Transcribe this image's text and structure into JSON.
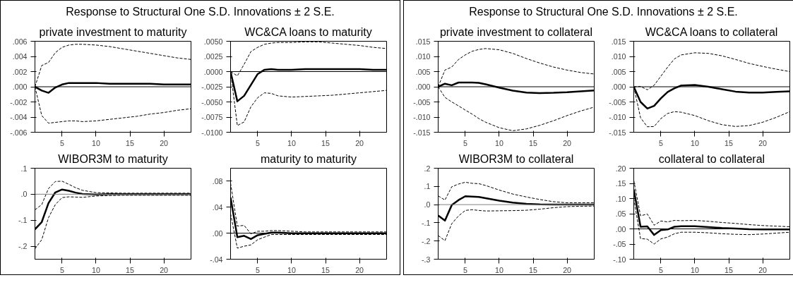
{
  "chart_data": [
    {
      "type": "line",
      "title": "private investment to maturity",
      "annotations": [
        "Response to Structural One S.D. Innovations ± 2 S.E."
      ],
      "x": [
        1,
        2,
        3,
        4,
        5,
        6,
        7,
        8,
        10,
        12,
        14,
        16,
        18,
        20,
        22,
        24
      ],
      "xlim": [
        1,
        24
      ],
      "xticks": [
        5,
        10,
        15,
        20
      ],
      "ylim": [
        -0.006,
        0.006
      ],
      "yticks": [
        {
          "value": -0.006,
          "label": "-.006"
        },
        {
          "value": -0.004,
          "label": "-.004"
        },
        {
          "value": -0.002,
          "label": "-.002"
        },
        {
          "value": 0,
          "label": ".000"
        },
        {
          "value": 0.002,
          "label": ".002"
        },
        {
          "value": 0.004,
          "label": ".004"
        },
        {
          "value": 0.006,
          "label": ".006"
        }
      ],
      "grid": false,
      "ref_lines": [
        {
          "axis": "y",
          "value": 0,
          "color": "#000000"
        }
      ],
      "series": [
        {
          "color": "#000000",
          "line_style": "solid",
          "values": [
            0,
            -0.0005,
            -0.0008,
            -0.0001,
            0.0003,
            0.0005,
            0.0005,
            0.0005,
            0.0005,
            0.0004,
            0.0004,
            0.0004,
            0.0004,
            0.0003,
            0.0003,
            0.0003
          ]
        },
        {
          "color": "#000000",
          "line_style": "dashed",
          "values": [
            0,
            0.0028,
            0.0032,
            0.0045,
            0.0052,
            0.0055,
            0.0056,
            0.0056,
            0.0055,
            0.0053,
            0.005,
            0.0047,
            0.0044,
            0.0041,
            0.0038,
            0.0036
          ]
        },
        {
          "color": "#000000",
          "line_style": "dashed",
          "values": [
            0,
            -0.0038,
            -0.0048,
            -0.0047,
            -0.0046,
            -0.0045,
            -0.0045,
            -0.0046,
            -0.0045,
            -0.0043,
            -0.0041,
            -0.0039,
            -0.0036,
            -0.0034,
            -0.0031,
            -0.0029
          ]
        }
      ]
    },
    {
      "type": "line",
      "title": "WC&CA loans to maturity",
      "x": [
        1,
        2,
        3,
        4,
        5,
        6,
        7,
        8,
        10,
        12,
        14,
        16,
        18,
        20,
        22,
        24
      ],
      "xlim": [
        1,
        24
      ],
      "xticks": [
        5,
        10,
        15,
        20
      ],
      "ylim": [
        -0.01,
        0.005
      ],
      "yticks": [
        {
          "value": -0.01,
          "label": "-.0100"
        },
        {
          "value": -0.0075,
          "label": "-.0075"
        },
        {
          "value": -0.005,
          "label": "-.0050"
        },
        {
          "value": -0.0025,
          "label": "-.0025"
        },
        {
          "value": 0,
          "label": ".0000"
        },
        {
          "value": 0.0025,
          "label": ".0025"
        },
        {
          "value": 0.005,
          "label": ".0050"
        }
      ],
      "grid": false,
      "ref_lines": [
        {
          "axis": "y",
          "value": 0,
          "color": "#000000"
        }
      ],
      "series": [
        {
          "color": "#000000",
          "line_style": "solid",
          "values": [
            0,
            -0.0049,
            -0.004,
            -0.0022,
            -0.0004,
            0.0003,
            0.0004,
            0.0003,
            0.0003,
            0.0004,
            0.0004,
            0.0004,
            0.0004,
            0.0004,
            0.0003,
            0.0003
          ]
        },
        {
          "color": "#000000",
          "line_style": "dashed",
          "values": [
            0,
            -0.0007,
            0.0012,
            0.0033,
            0.004,
            0.0045,
            0.0047,
            0.0048,
            0.0048,
            0.0049,
            0.0049,
            0.0047,
            0.0045,
            0.0043,
            0.004,
            0.0038
          ]
        },
        {
          "color": "#000000",
          "line_style": "dashed",
          "values": [
            0,
            -0.0089,
            -0.0083,
            -0.0058,
            -0.0043,
            -0.0035,
            -0.0036,
            -0.004,
            -0.0042,
            -0.0041,
            -0.004,
            -0.0039,
            -0.0037,
            -0.0035,
            -0.0033,
            -0.0031
          ]
        }
      ]
    },
    {
      "type": "line",
      "title": "private investment to collateral",
      "annotations": [
        "Response to Structural One S.D. Innovations ± 2 S.E."
      ],
      "x": [
        1,
        2,
        3,
        4,
        5,
        6,
        7,
        8,
        10,
        12,
        14,
        16,
        18,
        20,
        22,
        24
      ],
      "xlim": [
        1,
        24
      ],
      "xticks": [
        5,
        10,
        15,
        20
      ],
      "ylim": [
        -0.015,
        0.015
      ],
      "yticks": [
        {
          "value": -0.015,
          "label": "-.015"
        },
        {
          "value": -0.01,
          "label": "-.010"
        },
        {
          "value": -0.005,
          "label": "-.005"
        },
        {
          "value": 0,
          "label": ".000"
        },
        {
          "value": 0.005,
          "label": ".005"
        },
        {
          "value": 0.01,
          "label": ".010"
        },
        {
          "value": 0.015,
          "label": ".015"
        }
      ],
      "grid": false,
      "ref_lines": [
        {
          "axis": "y",
          "value": 0,
          "color": "#000000"
        }
      ],
      "series": [
        {
          "color": "#000000",
          "line_style": "solid",
          "values": [
            0,
            0.001,
            0.0005,
            0.0014,
            0.0014,
            0.0014,
            0.0013,
            0.0008,
            -0.0003,
            -0.0013,
            -0.0019,
            -0.0021,
            -0.002,
            -0.0018,
            -0.0015,
            -0.0012
          ]
        },
        {
          "color": "#000000",
          "line_style": "dashed",
          "values": [
            0,
            0.0055,
            0.0065,
            0.009,
            0.0105,
            0.0117,
            0.0123,
            0.0126,
            0.0122,
            0.011,
            0.0093,
            0.0078,
            0.0065,
            0.0055,
            0.0047,
            0.0042
          ]
        },
        {
          "color": "#000000",
          "line_style": "dashed",
          "values": [
            0,
            -0.0035,
            -0.005,
            -0.0063,
            -0.0077,
            -0.009,
            -0.0105,
            -0.0117,
            -0.0135,
            -0.0145,
            -0.0139,
            -0.0127,
            -0.0112,
            -0.0095,
            -0.008,
            -0.0067
          ]
        }
      ]
    },
    {
      "type": "line",
      "title": "WC&CA loans to collateral",
      "x": [
        1,
        2,
        3,
        4,
        5,
        6,
        7,
        8,
        10,
        12,
        14,
        16,
        18,
        20,
        22,
        24
      ],
      "xlim": [
        1,
        24
      ],
      "xticks": [
        5,
        10,
        15,
        20
      ],
      "ylim": [
        -0.015,
        0.015
      ],
      "yticks": [
        {
          "value": -0.015,
          "label": "-.015"
        },
        {
          "value": -0.01,
          "label": "-.010"
        },
        {
          "value": -0.005,
          "label": "-.005"
        },
        {
          "value": 0,
          "label": ".000"
        },
        {
          "value": 0.005,
          "label": ".005"
        },
        {
          "value": 0.01,
          "label": ".010"
        },
        {
          "value": 0.015,
          "label": ".015"
        }
      ],
      "grid": false,
      "ref_lines": [
        {
          "axis": "y",
          "value": 0,
          "color": "#000000"
        }
      ],
      "series": [
        {
          "color": "#000000",
          "line_style": "solid",
          "values": [
            0,
            -0.005,
            -0.0072,
            -0.0063,
            -0.0038,
            -0.0017,
            -0.0005,
            0.0004,
            0.0006,
            0,
            -0.0008,
            -0.0016,
            -0.0019,
            -0.0019,
            -0.0017,
            -0.0015
          ]
        },
        {
          "color": "#000000",
          "line_style": "dashed",
          "values": [
            0,
            0.0001,
            -0.001,
            0.0005,
            0.0035,
            0.0065,
            0.0092,
            0.0105,
            0.0112,
            0.011,
            0.0102,
            0.009,
            0.0077,
            0.0067,
            0.0058,
            0.005
          ]
        },
        {
          "color": "#000000",
          "line_style": "dashed",
          "values": [
            0,
            -0.0102,
            -0.0132,
            -0.0131,
            -0.0105,
            -0.0088,
            -0.0082,
            -0.0084,
            -0.0095,
            -0.0112,
            -0.0125,
            -0.0131,
            -0.0128,
            -0.0117,
            -0.0101,
            -0.0082
          ]
        }
      ]
    },
    {
      "type": "line",
      "title": "WIBOR3M to maturity",
      "x": [
        1,
        2,
        3,
        4,
        5,
        6,
        7,
        8,
        10,
        12,
        14,
        16,
        18,
        20,
        22,
        24
      ],
      "xlim": [
        1,
        24
      ],
      "xticks": [
        5,
        10,
        15,
        20
      ],
      "ylim": [
        -0.25,
        0.1
      ],
      "yticks": [
        {
          "value": -0.2,
          "label": "-.2"
        },
        {
          "value": -0.1,
          "label": "-.1"
        },
        {
          "value": 0,
          "label": ".0"
        },
        {
          "value": 0.1,
          "label": ".1"
        }
      ],
      "grid": false,
      "ref_lines": [
        {
          "axis": "y",
          "value": 0,
          "color": "#808080"
        }
      ],
      "series": [
        {
          "color": "#000000",
          "line_style": "solid",
          "values": [
            -0.135,
            -0.107,
            -0.034,
            0.007,
            0.018,
            0.013,
            0.006,
            0.001,
            -0.001,
            0,
            0,
            0,
            0,
            0,
            0,
            0
          ]
        },
        {
          "color": "#000000",
          "line_style": "dashed",
          "values": [
            -0.06,
            -0.04,
            0.022,
            0.049,
            0.05,
            0.038,
            0.025,
            0.015,
            0.006,
            0.005,
            0.004,
            0.004,
            0.004,
            0.004,
            0.004,
            0.004
          ]
        },
        {
          "color": "#000000",
          "line_style": "dashed",
          "values": [
            -0.21,
            -0.175,
            -0.09,
            -0.04,
            -0.013,
            -0.01,
            -0.011,
            -0.012,
            -0.007,
            -0.005,
            -0.004,
            -0.004,
            -0.004,
            -0.004,
            -0.004,
            -0.004
          ]
        }
      ]
    },
    {
      "type": "line",
      "title": "maturity to maturity",
      "x": [
        1,
        2,
        3,
        4,
        5,
        6,
        7,
        8,
        10,
        12,
        14,
        16,
        18,
        20,
        22,
        24
      ],
      "xlim": [
        1,
        24
      ],
      "xticks": [
        5,
        10,
        15,
        20
      ],
      "ylim": [
        -0.04,
        0.1
      ],
      "yticks": [
        {
          "value": -0.04,
          "label": "-.04"
        },
        {
          "value": 0,
          "label": ".00"
        },
        {
          "value": 0.04,
          "label": ".04"
        },
        {
          "value": 0.08,
          "label": ".08"
        }
      ],
      "grid": false,
      "ref_lines": [
        {
          "axis": "y",
          "value": 0,
          "color": "#000000"
        }
      ],
      "series": [
        {
          "color": "#000000",
          "line_style": "solid",
          "values": [
            0.055,
            -0.006,
            -0.004,
            -0.009,
            -0.003,
            -0.001,
            0.001,
            0.001,
            0,
            0,
            0,
            0,
            0,
            0,
            0,
            0
          ]
        },
        {
          "color": "#000000",
          "line_style": "dashed",
          "values": [
            0.077,
            0.011,
            0.012,
            -0.001,
            0.003,
            0.003,
            0.004,
            0.004,
            0.003,
            0.002,
            0.002,
            0.002,
            0.002,
            0.002,
            0.002,
            0.002
          ]
        },
        {
          "color": "#000000",
          "line_style": "dashed",
          "values": [
            0.03,
            -0.023,
            -0.02,
            -0.018,
            -0.01,
            -0.006,
            -0.002,
            -0.002,
            -0.002,
            -0.002,
            -0.002,
            -0.002,
            -0.002,
            -0.002,
            -0.002,
            -0.002
          ]
        }
      ]
    },
    {
      "type": "line",
      "title": "WIBOR3M to collateral",
      "x": [
        1,
        2,
        3,
        4,
        5,
        6,
        7,
        8,
        10,
        12,
        14,
        16,
        18,
        20,
        22,
        24
      ],
      "xlim": [
        1,
        24
      ],
      "xticks": [
        5,
        10,
        15,
        20
      ],
      "ylim": [
        -0.3,
        0.2
      ],
      "yticks": [
        {
          "value": -0.3,
          "label": "-.3"
        },
        {
          "value": -0.2,
          "label": "-.2"
        },
        {
          "value": -0.1,
          "label": "-.1"
        },
        {
          "value": 0,
          "label": ".0"
        },
        {
          "value": 0.1,
          "label": ".1"
        },
        {
          "value": 0.2,
          "label": ".2"
        }
      ],
      "grid": false,
      "ref_lines": [
        {
          "axis": "y",
          "value": 0,
          "color": "#808080"
        }
      ],
      "series": [
        {
          "color": "#000000",
          "line_style": "solid",
          "values": [
            -0.06,
            -0.088,
            -0.003,
            0.025,
            0.046,
            0.044,
            0.042,
            0.035,
            0.022,
            0.011,
            0.004,
            0.001,
            0,
            0,
            0,
            0
          ]
        },
        {
          "color": "#000000",
          "line_style": "dashed",
          "values": [
            0.048,
            0.025,
            0.098,
            0.113,
            0.123,
            0.117,
            0.115,
            0.105,
            0.08,
            0.058,
            0.042,
            0.028,
            0.016,
            0.01,
            0.01,
            0.01
          ]
        },
        {
          "color": "#000000",
          "line_style": "dashed",
          "values": [
            -0.17,
            -0.198,
            -0.105,
            -0.062,
            -0.032,
            -0.028,
            -0.032,
            -0.035,
            -0.034,
            -0.033,
            -0.031,
            -0.025,
            -0.017,
            -0.011,
            -0.009,
            -0.008
          ]
        }
      ]
    },
    {
      "type": "line",
      "title": "collateral to collateral",
      "x": [
        1,
        2,
        3,
        4,
        5,
        6,
        7,
        8,
        10,
        12,
        14,
        16,
        18,
        20,
        22,
        24
      ],
      "xlim": [
        1,
        24
      ],
      "xticks": [
        5,
        10,
        15,
        20
      ],
      "ylim": [
        -0.1,
        0.2
      ],
      "yticks": [
        {
          "value": -0.1,
          "label": "-.10"
        },
        {
          "value": -0.05,
          "label": "-.05"
        },
        {
          "value": 0,
          "label": ".00"
        },
        {
          "value": 0.05,
          "label": ".05"
        },
        {
          "value": 0.1,
          "label": ".10"
        },
        {
          "value": 0.15,
          "label": ".15"
        },
        {
          "value": 0.2,
          "label": ".20"
        }
      ],
      "grid": false,
      "ref_lines": [
        {
          "axis": "y",
          "value": 0,
          "color": "#000000"
        }
      ],
      "series": [
        {
          "color": "#000000",
          "line_style": "solid",
          "values": [
            0.13,
            0.007,
            0.008,
            -0.02,
            -0.004,
            -0.002,
            0.007,
            0.009,
            0.009,
            0.006,
            0.003,
            0.001,
            -0.001,
            -0.002,
            -0.002,
            -0.002
          ]
        },
        {
          "color": "#000000",
          "line_style": "dashed",
          "values": [
            0.16,
            0.043,
            0.049,
            0.012,
            0.026,
            0.023,
            0.028,
            0.027,
            0.028,
            0.025,
            0.021,
            0.018,
            0.014,
            0.011,
            0.009,
            0.007
          ]
        },
        {
          "color": "#000000",
          "line_style": "dashed",
          "values": [
            0.1,
            -0.032,
            -0.034,
            -0.05,
            -0.033,
            -0.027,
            -0.016,
            -0.011,
            -0.011,
            -0.013,
            -0.016,
            -0.018,
            -0.019,
            -0.017,
            -0.014,
            -0.011
          ]
        }
      ]
    }
  ]
}
